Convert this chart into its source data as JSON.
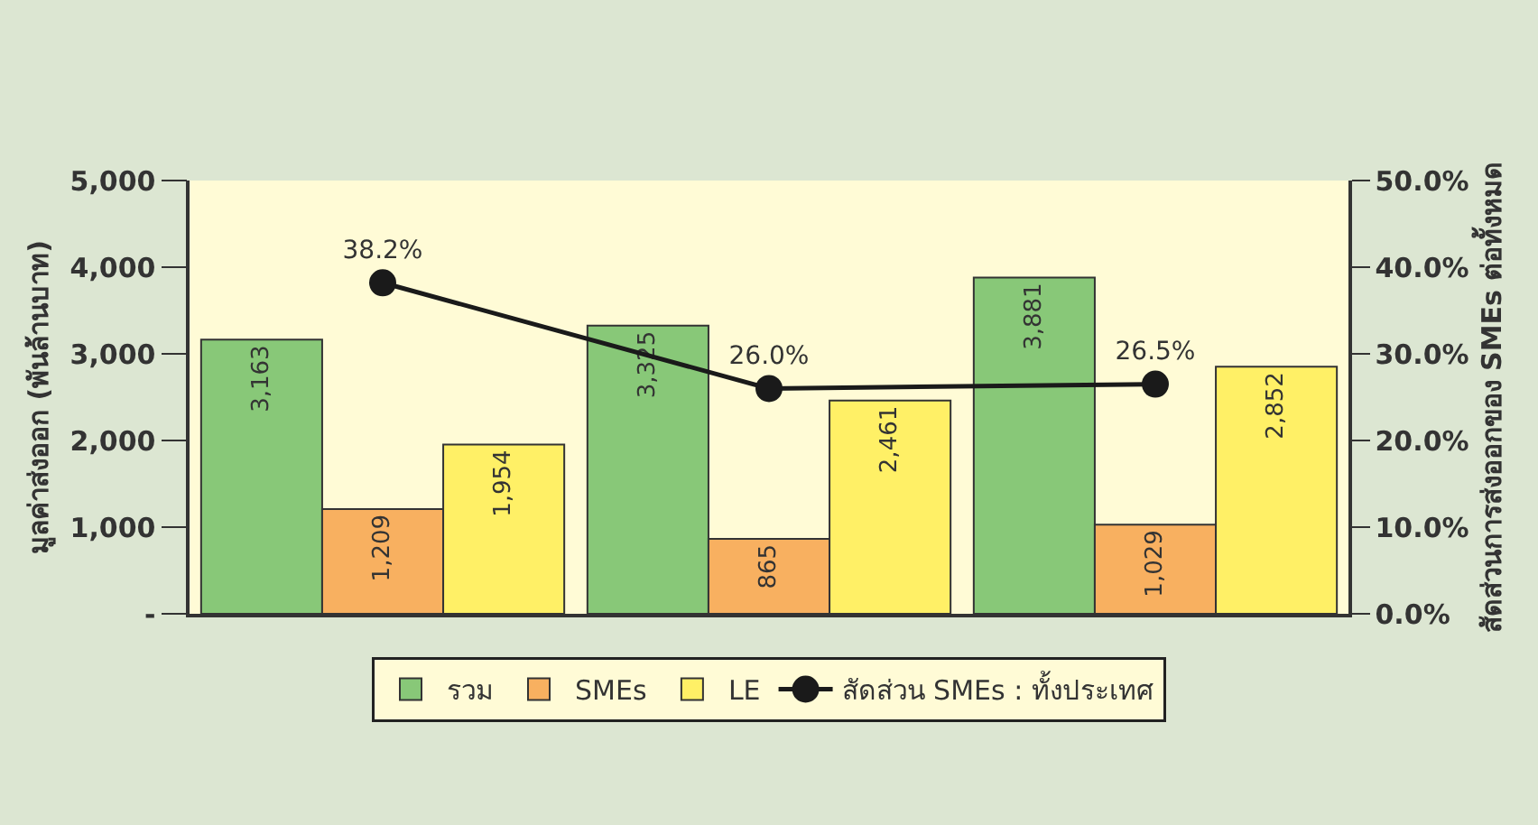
{
  "chart_data": {
    "type": "bar",
    "categories": [
      null,
      null,
      null
    ],
    "ylabel": "มูลค่าส่งออก (พันล้านบาท)",
    "y2label": "สัดส่วนการส่งออกของ SMEs ต่อทั้งหมด",
    "ylim": [
      0,
      5000
    ],
    "yticks": [
      {
        "value": 0,
        "label": "-"
      },
      {
        "value": 1000,
        "label": "1,000"
      },
      {
        "value": 2000,
        "label": "2,000"
      },
      {
        "value": 3000,
        "label": "3,000"
      },
      {
        "value": 4000,
        "label": "4,000"
      },
      {
        "value": 5000,
        "label": "5,000"
      }
    ],
    "y2lim": [
      0,
      50
    ],
    "y2ticks": [
      {
        "value": 0,
        "label": "0.0%"
      },
      {
        "value": 10,
        "label": "10.0%"
      },
      {
        "value": 20,
        "label": "20.0%"
      },
      {
        "value": 30,
        "label": "30.0%"
      },
      {
        "value": 40,
        "label": "40.0%"
      },
      {
        "value": 50,
        "label": "50.0%"
      }
    ],
    "series": [
      {
        "name": "รวม",
        "color": "#88c878",
        "values": [
          3163,
          3325,
          3881
        ],
        "value_labels": [
          "3,163",
          "3,325",
          "3,881"
        ]
      },
      {
        "name": "SMEs",
        "color": "#f8b060",
        "values": [
          1209,
          865,
          1029
        ],
        "value_labels": [
          "1,209",
          "865",
          "1,029"
        ]
      },
      {
        "name": "LE",
        "color": "#fff066",
        "values": [
          1954,
          2461,
          2852
        ],
        "value_labels": [
          "1,954",
          "2,461",
          "2,852"
        ]
      },
      {
        "name": "สัดส่วน SMEs : ทั้งประเทศ",
        "type": "line",
        "axis": "y2",
        "color": "#1a1a1a",
        "marker": "circle",
        "values": [
          38.2,
          26.0,
          26.5
        ],
        "value_labels": [
          "38.2%",
          "26.0%",
          "26.5%"
        ]
      }
    ],
    "grid": false,
    "legend": "bottom"
  }
}
